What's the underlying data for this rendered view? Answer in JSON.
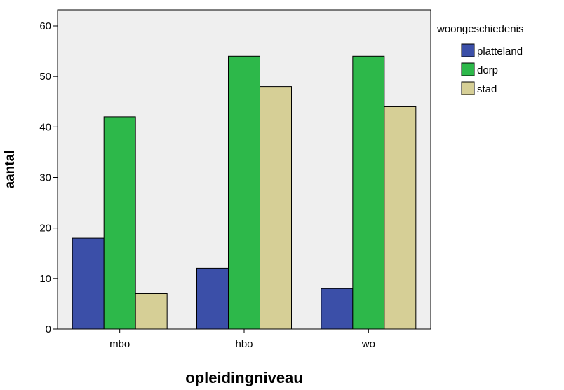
{
  "chart_data": {
    "type": "bar",
    "categories": [
      "mbo",
      "hbo",
      "wo"
    ],
    "series": [
      {
        "name": "platteland",
        "values": [
          18,
          12,
          8
        ],
        "color": "#3b4fa8"
      },
      {
        "name": "dorp",
        "values": [
          42,
          54,
          54
        ],
        "color": "#2db84a"
      },
      {
        "name": "stad",
        "values": [
          7,
          48,
          44
        ],
        "color": "#d6cf96"
      }
    ],
    "title": "",
    "xlabel": "opleidingniveau",
    "ylabel": "aantal",
    "ylim": [
      0,
      60
    ],
    "yticks": [
      0,
      10,
      20,
      30,
      40,
      50,
      60
    ],
    "legend_title": "woongeschiedenis",
    "legend_position": "top-right outside plot",
    "grid": false,
    "plot_background": "#efefef"
  }
}
